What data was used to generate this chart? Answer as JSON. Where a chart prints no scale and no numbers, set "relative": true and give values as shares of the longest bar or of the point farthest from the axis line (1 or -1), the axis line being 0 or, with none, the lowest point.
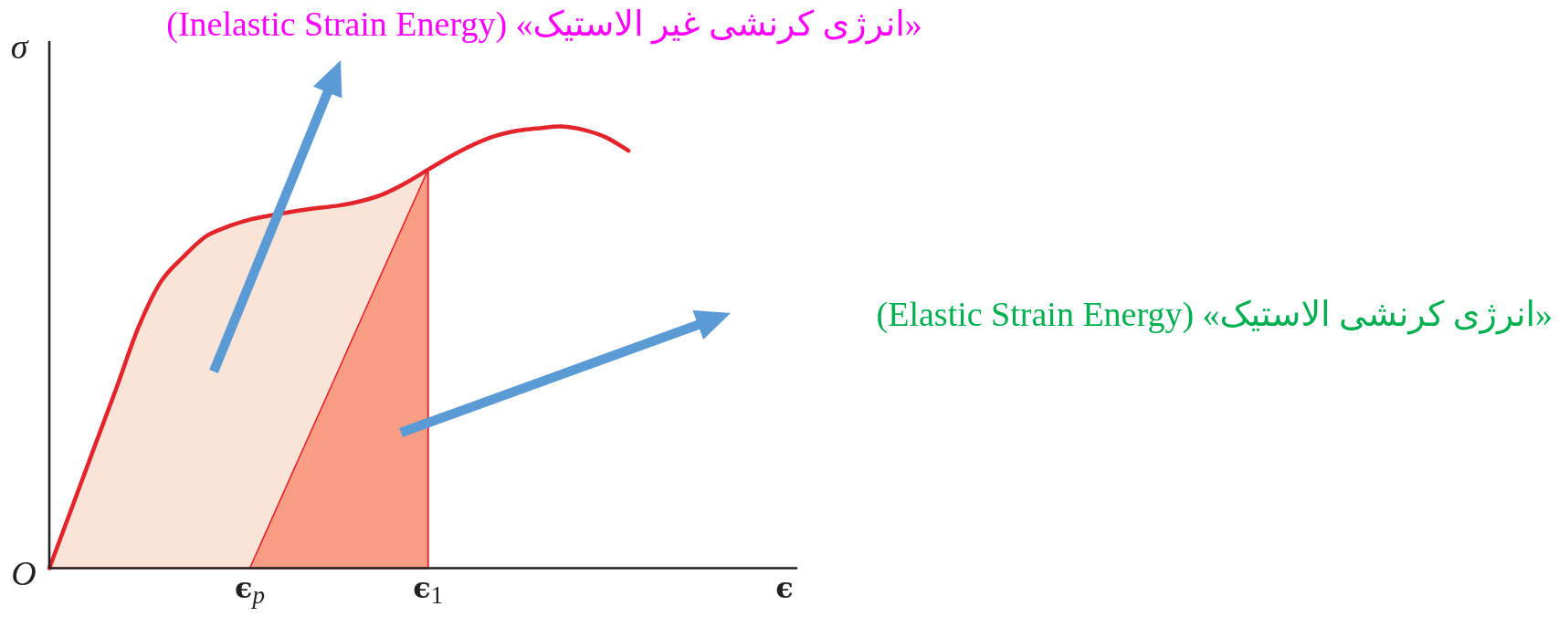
{
  "chart_data": {
    "type": "line",
    "relative": true,
    "xlabel": "ϵ",
    "ylabel": "σ",
    "categories": [
      null,
      null,
      null,
      null,
      null,
      null,
      null,
      null,
      null,
      "ϵ$_{p}$",
      null,
      null,
      null,
      null,
      null,
      null,
      null,
      "ϵ$_{1}$",
      null,
      null,
      null,
      null,
      null,
      null,
      null,
      null,
      null
    ],
    "series": [
      {
        "type": "area",
        "color": "#f9e4d7",
        "values": [
          0,
          0.135,
          0.271,
          0.406,
          0.545,
          0.648,
          0.704,
          0.75,
          0.773,
          0.789,
          0.799,
          0.808,
          0.815,
          0.821,
          0.831,
          0.847,
          0.872,
          0.902,
          null,
          null,
          null,
          null,
          null,
          null,
          null,
          null,
          null
        ]
      },
      {
        "type": "area",
        "color": "#f89c84",
        "values": [
          null,
          null,
          null,
          null,
          null,
          null,
          null,
          null,
          null,
          0,
          0.113,
          0.226,
          0.338,
          0.451,
          0.564,
          0.677,
          0.789,
          0.902,
          null,
          null,
          null,
          null,
          null,
          null,
          null,
          null,
          null
        ]
      },
      {
        "color": "#e3242b",
        "values": [
          0,
          0.135,
          0.271,
          0.406,
          0.545,
          0.648,
          0.704,
          0.75,
          0.773,
          0.789,
          0.799,
          0.808,
          0.815,
          0.821,
          0.831,
          0.847,
          0.872,
          0.902,
          0.932,
          0.958,
          0.978,
          0.99,
          0.996,
          1,
          0.992,
          0.975,
          0.945
        ]
      }
    ],
    "annotations": [
      "O",
      "«انرژی کرنشی غیر الاستیک» (Inelastic Strain Energy)",
      "«انرژی کرنشی الاستیک» (Elastic Strain Energy)"
    ]
  }
}
